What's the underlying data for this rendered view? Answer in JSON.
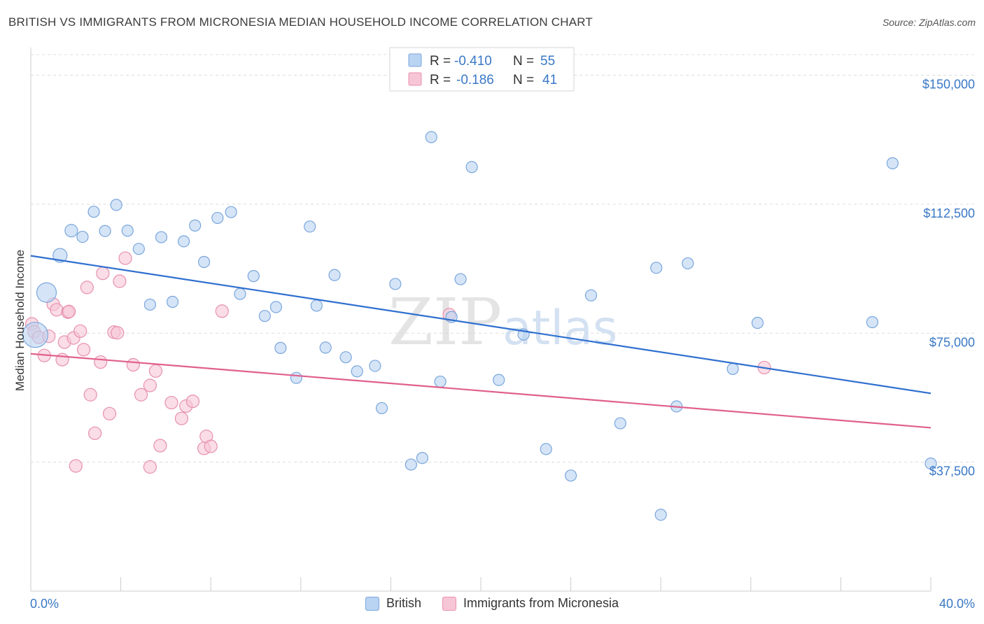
{
  "title": "BRITISH VS IMMIGRANTS FROM MICRONESIA MEDIAN HOUSEHOLD INCOME CORRELATION CHART",
  "source": "Source: ZipAtlas.com",
  "watermark": {
    "zip": "ZIP",
    "atlas": "atlas"
  },
  "legend": {
    "british": {
      "r_label": "R =",
      "r_value": "-0.410",
      "n_label": "N =",
      "n_value": "55"
    },
    "micronesia": {
      "r_label": "R =",
      "r_value": "-0.186",
      "n_label": "N =",
      "n_value": "41"
    }
  },
  "colors": {
    "british_fill": "#b9d3f2",
    "british_stroke": "#7aa6dc",
    "british_line": "#2f6fcf",
    "micronesia_fill": "#f7c6d6",
    "micronesia_stroke": "#e890ad",
    "micronesia_line": "#e0608e",
    "tick_text": "#3a78c6"
  },
  "chart_data": {
    "type": "scatter",
    "title": "BRITISH VS IMMIGRANTS FROM MICRONESIA MEDIAN HOUSEHOLD INCOME CORRELATION CHART",
    "xlabel": "",
    "ylabel": "Median Household Income",
    "xlim": [
      0,
      40
    ],
    "ylim": [
      0,
      156000
    ],
    "x_tick_labels": [
      "0.0%",
      "40.0%"
    ],
    "y_ticks": [
      37500,
      75000,
      112500,
      150000
    ],
    "y_tick_labels": [
      "$37,500",
      "$75,000",
      "$112,500",
      "$150,000"
    ],
    "grid": true,
    "legend_position": "top-center",
    "series": [
      {
        "name": "British",
        "points": [
          [
            0.2,
            74500,
            18
          ],
          [
            0.7,
            86800,
            14
          ],
          [
            1.3,
            97600,
            10
          ],
          [
            1.8,
            104800,
            9
          ],
          [
            2.3,
            103000,
            8
          ],
          [
            2.8,
            110300,
            8
          ],
          [
            3.3,
            104700,
            8
          ],
          [
            3.8,
            112300,
            8
          ],
          [
            4.3,
            104800,
            8
          ],
          [
            4.8,
            99500,
            8
          ],
          [
            5.3,
            83300,
            8
          ],
          [
            5.8,
            102900,
            8
          ],
          [
            6.3,
            84100,
            8
          ],
          [
            6.8,
            101700,
            8
          ],
          [
            7.3,
            106300,
            8
          ],
          [
            7.7,
            95700,
            8
          ],
          [
            8.3,
            108500,
            8
          ],
          [
            8.9,
            110200,
            8
          ],
          [
            9.3,
            86400,
            8
          ],
          [
            9.9,
            91600,
            8
          ],
          [
            10.4,
            80000,
            8
          ],
          [
            10.9,
            82600,
            8
          ],
          [
            11.1,
            70700,
            8
          ],
          [
            11.8,
            62000,
            8
          ],
          [
            12.4,
            106000,
            8
          ],
          [
            12.7,
            83000,
            8
          ],
          [
            13.1,
            70800,
            8
          ],
          [
            13.5,
            91900,
            8
          ],
          [
            14.0,
            68000,
            8
          ],
          [
            14.5,
            63900,
            8
          ],
          [
            15.3,
            65500,
            8
          ],
          [
            15.6,
            53200,
            8
          ],
          [
            16.2,
            89300,
            8
          ],
          [
            16.9,
            36800,
            8
          ],
          [
            17.4,
            38700,
            8
          ],
          [
            17.8,
            132000,
            8
          ],
          [
            18.2,
            60900,
            8
          ],
          [
            18.7,
            79700,
            8
          ],
          [
            19.1,
            90700,
            8
          ],
          [
            19.6,
            123300,
            8
          ],
          [
            20.8,
            61400,
            8
          ],
          [
            21.9,
            74600,
            8
          ],
          [
            22.9,
            41300,
            8
          ],
          [
            24.0,
            33600,
            8
          ],
          [
            24.9,
            86000,
            8
          ],
          [
            26.2,
            48800,
            8
          ],
          [
            27.8,
            94000,
            8
          ],
          [
            28.0,
            22200,
            8
          ],
          [
            28.7,
            53700,
            8
          ],
          [
            29.2,
            95300,
            8
          ],
          [
            31.2,
            64600,
            8
          ],
          [
            32.3,
            78000,
            8
          ],
          [
            37.4,
            78200,
            8
          ],
          [
            38.3,
            124400,
            8
          ],
          [
            40.0,
            37100,
            8
          ]
        ]
      },
      {
        "name": "Immigrants from Micronesia",
        "points": [
          [
            0.05,
            77700,
            9
          ],
          [
            0.15,
            75400,
            9
          ],
          [
            0.35,
            73800,
            9
          ],
          [
            0.6,
            68500,
            9
          ],
          [
            0.8,
            74100,
            9
          ],
          [
            1.0,
            83400,
            9
          ],
          [
            1.15,
            81800,
            9
          ],
          [
            1.4,
            67300,
            9
          ],
          [
            1.5,
            72400,
            9
          ],
          [
            1.65,
            81100,
            9
          ],
          [
            1.7,
            81300,
            9
          ],
          [
            1.9,
            73600,
            9
          ],
          [
            2.0,
            36400,
            9
          ],
          [
            2.2,
            75600,
            9
          ],
          [
            2.35,
            70200,
            9
          ],
          [
            2.5,
            88300,
            9
          ],
          [
            2.65,
            57100,
            9
          ],
          [
            2.85,
            45900,
            9
          ],
          [
            3.1,
            66600,
            9
          ],
          [
            3.2,
            92400,
            9
          ],
          [
            3.5,
            51600,
            9
          ],
          [
            3.7,
            75300,
            9
          ],
          [
            3.85,
            75100,
            9
          ],
          [
            3.95,
            90100,
            9
          ],
          [
            4.2,
            96800,
            9
          ],
          [
            4.55,
            65800,
            9
          ],
          [
            4.9,
            57100,
            9
          ],
          [
            5.3,
            59800,
            9
          ],
          [
            5.3,
            36100,
            9
          ],
          [
            5.55,
            64000,
            9
          ],
          [
            5.75,
            42300,
            9
          ],
          [
            6.25,
            54800,
            9
          ],
          [
            6.7,
            50200,
            9
          ],
          [
            6.9,
            53800,
            9
          ],
          [
            7.2,
            55200,
            9
          ],
          [
            7.7,
            41500,
            9
          ],
          [
            7.8,
            45000,
            9
          ],
          [
            8.0,
            42100,
            9
          ],
          [
            8.5,
            81400,
            9
          ],
          [
            18.6,
            80400,
            9
          ],
          [
            32.6,
            65000,
            9
          ]
        ]
      }
    ],
    "trend_lines": [
      {
        "name": "British",
        "x": [
          0,
          40
        ],
        "y": [
          97500,
          57500
        ]
      },
      {
        "name": "Immigrants from Micronesia",
        "x": [
          0,
          40
        ],
        "y": [
          69000,
          47500
        ]
      }
    ]
  },
  "bottom_legend": [
    {
      "name": "British"
    },
    {
      "name": "Immigrants from Micronesia"
    }
  ]
}
